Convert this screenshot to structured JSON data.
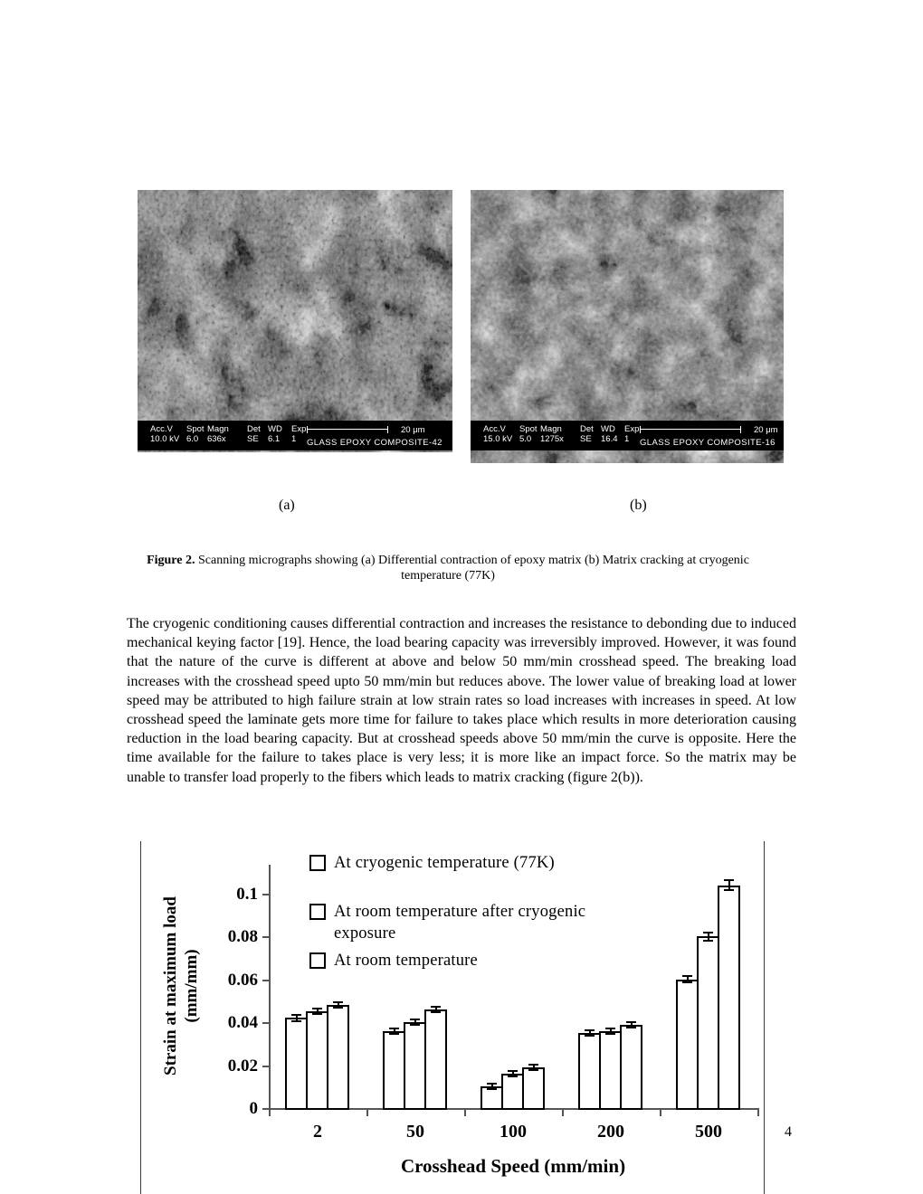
{
  "page": {
    "number": "4"
  },
  "figure": {
    "label_a": "(a)",
    "label_b": "(b)",
    "caption_label": "Figure 2.",
    "caption_text": " Scanning micrographs showing (a) Differential contraction of epoxy matrix (b) Matrix cracking at cryogenic temperature (77K)"
  },
  "micrographs": {
    "a": {
      "columns": [
        {
          "h": "Acc.V",
          "v": "10.0 kV"
        },
        {
          "h": "Spot",
          "v": "6.0"
        },
        {
          "h": "Magn",
          "v": "636x"
        },
        {
          "h": "Det",
          "v": "SE"
        },
        {
          "h": "WD",
          "v": "6.1"
        },
        {
          "h": "Exp",
          "v": "1"
        }
      ],
      "scale_label": "20 μm",
      "sample": "GLASS EPOXY COMPOSITE-42"
    },
    "b": {
      "columns": [
        {
          "h": "Acc.V",
          "v": "15.0 kV"
        },
        {
          "h": "Spot",
          "v": "5.0"
        },
        {
          "h": "Magn",
          "v": "1275x"
        },
        {
          "h": "Det",
          "v": "SE"
        },
        {
          "h": "WD",
          "v": "16.4"
        },
        {
          "h": "Exp",
          "v": "1"
        }
      ],
      "scale_label": "20 μm",
      "sample": "GLASS EPOXY COMPOSITE-16"
    }
  },
  "paragraph": "The cryogenic conditioning causes differential contraction and increases the resistance to debonding due to induced mechanical keying factor [19]. Hence, the load bearing capacity was irreversibly improved. However, it was found that the nature of the curve is different  at above and below 50 mm/min crosshead speed. The breaking load increases with the crosshead speed upto 50 mm/min but reduces above. The lower value of breaking load at lower speed may be attributed to high failure strain at low strain rates so load increases with increases in speed. At low crosshead speed the laminate gets more time for failure to takes place which results in more deterioration causing reduction in the load bearing capacity. But at crosshead speeds above 50 mm/min the curve is opposite. Here the time available for the failure to takes place is very less; it is more like an impact force. So the matrix may be unable to transfer load properly to the fibers which leads to matrix cracking (figure 2(b)).",
  "chart_data": {
    "type": "bar",
    "categories": [
      "2",
      "50",
      "100",
      "200",
      "500"
    ],
    "series": [
      {
        "name": "At cryogenic temperature (77K)",
        "values": [
          0.042,
          0.036,
          0.01,
          0.035,
          0.06
        ],
        "errors": [
          0.0013,
          0.0013,
          0.0006,
          0.0008,
          0.0015
        ]
      },
      {
        "name": "At room temperature after cryogenic exposure",
        "values": [
          0.045,
          0.04,
          0.016,
          0.036,
          0.08
        ],
        "errors": [
          0.0013,
          0.0013,
          0.0006,
          0.0008,
          0.002
        ]
      },
      {
        "name": "At room temperature",
        "values": [
          0.048,
          0.046,
          0.019,
          0.039,
          0.104
        ],
        "errors": [
          0.0013,
          0.0013,
          0.0006,
          0.0008,
          0.0025
        ]
      }
    ],
    "xlabel": "Crosshead Speed (mm/min)",
    "ylabel": "Strain at maximum load\n(mm/mm)",
    "ylim": [
      0,
      0.113
    ],
    "yticks": [
      "0",
      "0.02",
      "0.04",
      "0.06",
      "0.08",
      "0.1"
    ],
    "grid": false,
    "legend_position": "top-left-inside",
    "bar_fill": "#ffffff",
    "bar_border": "#000000",
    "axis_color": "#555555"
  }
}
